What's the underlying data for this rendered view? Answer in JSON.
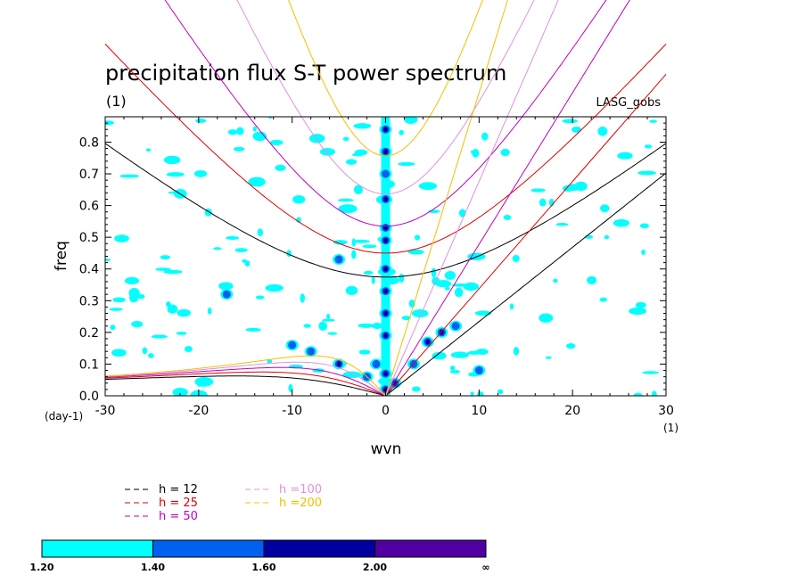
{
  "chart_data": {
    "type": "contour",
    "title": "precipitation flux S-T power spectrum",
    "subtitle": "(1)",
    "source_label": "LASG_gobs",
    "xlabel": "wvn",
    "ylabel": "freq",
    "x_unit": "(1)",
    "y_unit": "(day-1)",
    "xlim": [
      -30,
      30
    ],
    "ylim": [
      0,
      0.88
    ],
    "x_ticks": [
      -30,
      -20,
      -10,
      0,
      10,
      20,
      30
    ],
    "x_tick_labels": [
      "-30",
      "-20",
      "-10",
      "0",
      "10",
      "20",
      "30"
    ],
    "y_ticks": [
      0,
      0.1,
      0.2,
      0.3,
      0.4,
      0.5,
      0.6,
      0.7,
      0.8
    ],
    "y_tick_labels": [
      "0.0",
      "0.1",
      "0.2",
      "0.3",
      "0.4",
      "0.5",
      "0.6",
      "0.7",
      "0.8"
    ],
    "dispersion_curves": [
      {
        "name": "h = 12",
        "h": 12,
        "color": "#000000"
      },
      {
        "name": "h = 25",
        "h": 25,
        "color": "#e00000"
      },
      {
        "name": "h = 50",
        "h": 50,
        "color": "#c000c0"
      },
      {
        "name": "h =100",
        "h": 100,
        "color": "#e090e0"
      },
      {
        "name": "h =200",
        "h": 200,
        "color": "#f0c000"
      }
    ],
    "contour_levels": [
      "1.20",
      "1.40",
      "1.60",
      "2.00",
      "∞"
    ],
    "contour_colors": [
      "#00ffff",
      "#0060f0",
      "#0000a0",
      "#5000a0"
    ],
    "spectral_peaks": [
      {
        "x": 0,
        "y": 0.84,
        "level": 2
      },
      {
        "x": 0,
        "y": 0.77,
        "level": 2
      },
      {
        "x": 0,
        "y": 0.7,
        "level": 1
      },
      {
        "x": 0,
        "y": 0.62,
        "level": 2
      },
      {
        "x": 0,
        "y": 0.53,
        "level": 2
      },
      {
        "x": 0,
        "y": 0.49,
        "level": 2
      },
      {
        "x": 0,
        "y": 0.4,
        "level": 2
      },
      {
        "x": 0,
        "y": 0.33,
        "level": 2
      },
      {
        "x": 0,
        "y": 0.26,
        "level": 2
      },
      {
        "x": 0,
        "y": 0.19,
        "level": 2
      },
      {
        "x": 0,
        "y": 0.07,
        "level": 2
      },
      {
        "x": 0,
        "y": 0.02,
        "level": 2
      },
      {
        "x": 1,
        "y": 0.04,
        "level": 2
      },
      {
        "x": 3,
        "y": 0.1,
        "level": 1
      },
      {
        "x": 4.5,
        "y": 0.17,
        "level": 2
      },
      {
        "x": 6,
        "y": 0.2,
        "level": 2
      },
      {
        "x": 7.5,
        "y": 0.22,
        "level": 1
      },
      {
        "x": -2,
        "y": 0.06,
        "level": 1
      },
      {
        "x": -1,
        "y": 0.1,
        "level": 1
      },
      {
        "x": -5,
        "y": 0.1,
        "level": 2
      },
      {
        "x": -8,
        "y": 0.14,
        "level": 1
      },
      {
        "x": -10,
        "y": 0.16,
        "level": 1
      },
      {
        "x": -5,
        "y": 0.43,
        "level": 1
      },
      {
        "x": -17,
        "y": 0.32,
        "level": 1
      },
      {
        "x": 10,
        "y": 0.08,
        "level": 1
      }
    ]
  },
  "legend": {
    "items": [
      {
        "label": "h = 12",
        "color": "#000000"
      },
      {
        "label": "h = 25",
        "color": "#e00000"
      },
      {
        "label": "h = 50",
        "color": "#c000c0"
      },
      {
        "label": "h =100",
        "color": "#e090e0"
      },
      {
        "label": "h =200",
        "color": "#f0c000"
      }
    ]
  },
  "colorbar": {
    "colors": [
      "#00ffff",
      "#0060f0",
      "#0000a0",
      "#5000a0"
    ],
    "labels": [
      "1.20",
      "1.40",
      "1.60",
      "2.00",
      "∞"
    ]
  }
}
